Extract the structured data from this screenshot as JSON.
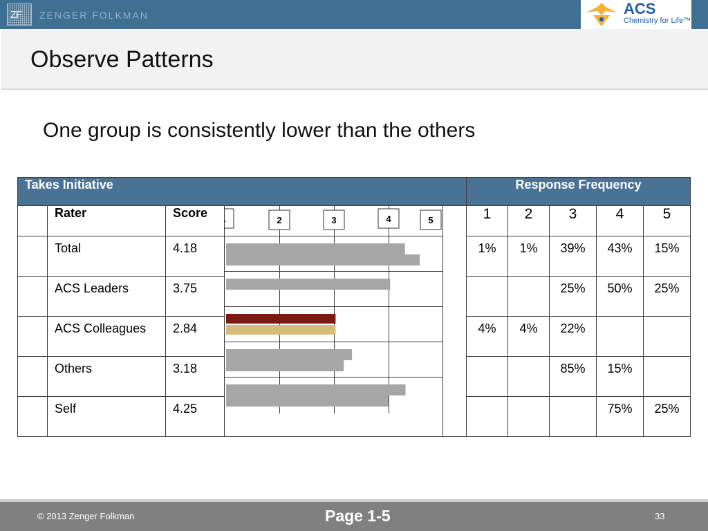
{
  "header": {
    "company": "ZENGER FOLKMAN",
    "logo_mark": "ZF",
    "acs_name": "ACS",
    "acs_tagline": "Chemistry for Life™"
  },
  "slide": {
    "title": "Observe Patterns",
    "subtitle": "One group is consistently lower than the others"
  },
  "table": {
    "competency": "Takes Initiative",
    "response_header": "Response Frequency",
    "rater_header": "Rater",
    "score_header": "Score",
    "scale_markers": [
      "1",
      "2",
      "3",
      "4",
      "5"
    ],
    "response_columns": [
      "1",
      "2",
      "3",
      "4",
      "5"
    ],
    "rows": [
      {
        "rater": "Total",
        "score": "4.18",
        "freq": [
          "1%",
          "1%",
          "39%",
          "43%",
          "15%"
        ]
      },
      {
        "rater": "ACS Leaders",
        "score": "3.75",
        "freq": [
          "",
          "",
          "25%",
          "50%",
          "25%"
        ]
      },
      {
        "rater": "ACS Colleagues",
        "score": "2.84",
        "freq": [
          "4%",
          "4%",
          "22%",
          "",
          ""
        ]
      },
      {
        "rater": "Others",
        "score": "3.18",
        "freq": [
          "",
          "",
          "85%",
          "15%",
          ""
        ]
      },
      {
        "rater": "Self",
        "score": "4.25",
        "freq": [
          "",
          "",
          "",
          "75%",
          "25%"
        ]
      }
    ]
  },
  "chart_data": {
    "type": "bar",
    "orientation": "horizontal",
    "categories": [
      "Total",
      "ACS Leaders",
      "ACS Colleagues",
      "Others",
      "Self"
    ],
    "xlim": [
      1,
      5
    ],
    "series": [
      {
        "values": [
          4.3,
          4.03,
          3.03,
          3.33,
          4.31
        ]
      },
      {
        "values": [
          4.57,
          null,
          3.03,
          3.18,
          4.0
        ]
      }
    ],
    "colors": {
      "neutral": "#a6a6a6",
      "low_primary": "#7b1a12",
      "low_secondary": "#d4bc7c"
    },
    "highlight_category": "ACS Colleagues"
  },
  "footer": {
    "copyright": "© 2013  Zenger Folkman",
    "page_label": "Page 1-5",
    "slide_number": "33"
  }
}
